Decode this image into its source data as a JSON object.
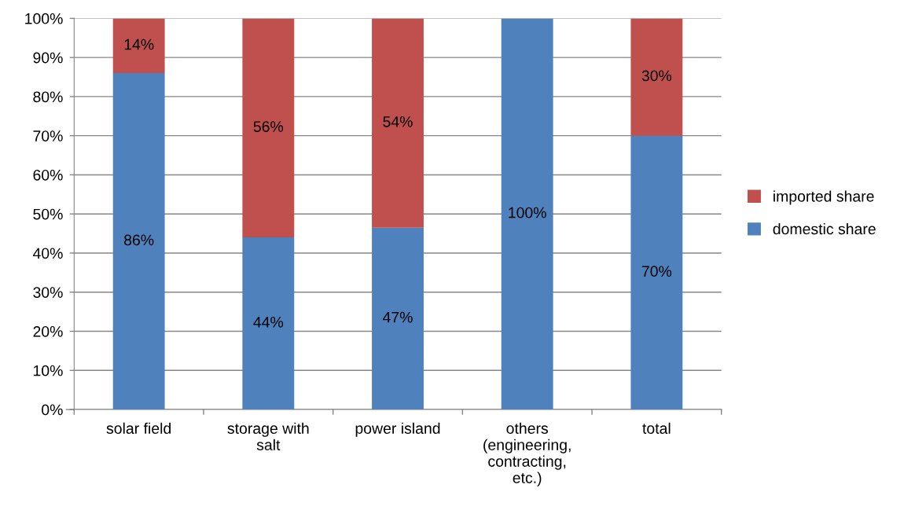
{
  "chart_data": {
    "type": "bar",
    "stacked": true,
    "categories": [
      "solar field",
      "storage with\nsalt",
      "power island",
      "others\n(engineering,\ncontracting,\netc.)",
      "total"
    ],
    "series": [
      {
        "name": "domestic share",
        "color": "#4f81bd",
        "values": [
          86,
          44,
          46.5,
          100,
          70
        ],
        "value_labels": [
          "86%",
          "44%",
          "47%",
          "100%",
          "70%"
        ]
      },
      {
        "name": "imported share",
        "color": "#c0504d",
        "values": [
          14,
          56,
          53.5,
          0,
          30
        ],
        "value_labels": [
          "14%",
          "56%",
          "54%",
          null,
          "30%"
        ]
      }
    ],
    "ylim": [
      0,
      100
    ],
    "yticks": [
      {
        "value": 0,
        "label": "0%"
      },
      {
        "value": 10,
        "label": "10%"
      },
      {
        "value": 20,
        "label": "20%"
      },
      {
        "value": 30,
        "label": "30%"
      },
      {
        "value": 40,
        "label": "40%"
      },
      {
        "value": 50,
        "label": "50%"
      },
      {
        "value": 60,
        "label": "60%"
      },
      {
        "value": 70,
        "label": "70%"
      },
      {
        "value": 80,
        "label": "80%"
      },
      {
        "value": 90,
        "label": "90%"
      },
      {
        "value": 100,
        "label": "100%"
      }
    ],
    "grid": "y",
    "legend": "right"
  }
}
